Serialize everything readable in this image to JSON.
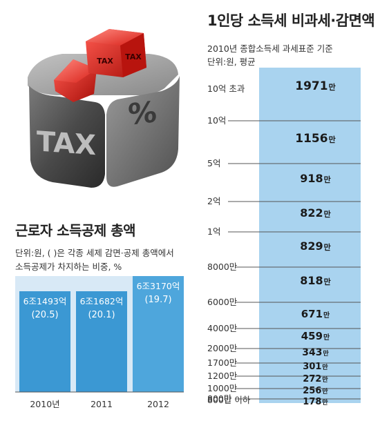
{
  "illustration": {
    "die_front_text": "TAX",
    "die_side_text": "%",
    "cube_text_1": "TAX",
    "cube_text_2": "TAX"
  },
  "right_panel": {
    "title": "1인당 소득세 비과세·감면액",
    "subtitle1": "2010년 종합소득세 과세표준 기준",
    "subtitle2": "단위:원, 평균"
  },
  "left_panel": {
    "title": "근로자 소득공제 총액",
    "note1": "단위:원, ( )은 각종 세제 감면·공제 총액에서",
    "note2": "소득공제가 차지하는 비중, %"
  },
  "chart_data": [
    {
      "type": "bar",
      "orientation": "horizontal",
      "title": "1인당 소득세 비과세·감면액",
      "subtitle": "2010년 종합소득세 과세표준 기준",
      "unit": "단위:원, 평균",
      "categories": [
        "10억 초과",
        "5억~10억",
        "2억~5억",
        "1억~2억",
        "8000만~1억",
        "6000만~8000만",
        "4000만~6000만",
        "2000만~4000만",
        "1700만~2000만",
        "1200만~1700만",
        "1000만~1200만",
        "800만~1000만",
        "800만 이하"
      ],
      "values": [
        1971,
        1156,
        918,
        822,
        829,
        818,
        671,
        459,
        343,
        301,
        272,
        256,
        178
      ],
      "value_labels": [
        "1971만",
        "1156만",
        "918만",
        "822만",
        "829만",
        "818만",
        "671만",
        "459만",
        "343만",
        "301만",
        "272만",
        "256만",
        "178만"
      ],
      "band_label_number": [
        "1971",
        "1156",
        "918",
        "822",
        "829",
        "818",
        "671",
        "459",
        "343",
        "301",
        "272",
        "256",
        "178"
      ],
      "band_label_unit": "만",
      "axis_labels": [
        "10억 초과",
        "10억",
        "5억",
        "2억",
        "1억",
        "8000만",
        "6000만",
        "4000만",
        "2000만",
        "1700만",
        "1200만",
        "1000만",
        "800만",
        "800만 이하"
      ],
      "colors": {
        "band": "#a9d3ef",
        "band_edge": "#6aaedb",
        "tick": "#555555"
      }
    },
    {
      "type": "bar",
      "title": "근로자 소득공제 총액",
      "unit": "단위:원",
      "categories": [
        "2010년",
        "2011",
        "2012"
      ],
      "values": [
        6.1493,
        6.1682,
        6.317
      ],
      "value_labels": [
        "6조1493억",
        "6조1682억",
        "6조3170억"
      ],
      "shares_percent": [
        20.5,
        20.1,
        19.7
      ],
      "share_labels": [
        "(20.5)",
        "(20.1)",
        "(19.7)"
      ],
      "colors": {
        "bar": "#3b98d3",
        "bar_last": "#4ea6dc",
        "panel_bg": "#d8e9f6",
        "text": "#ffffff"
      }
    }
  ]
}
